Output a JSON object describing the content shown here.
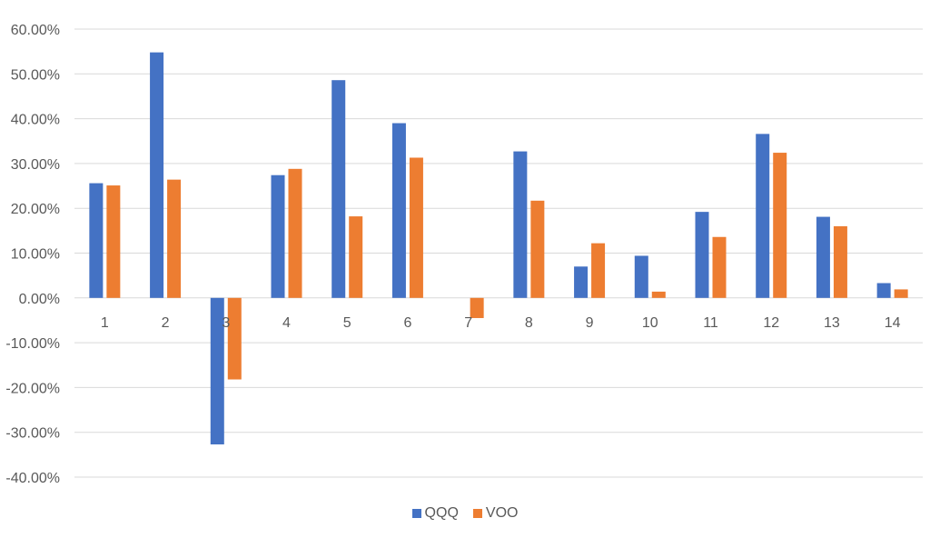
{
  "chart_data": {
    "type": "bar",
    "title": "",
    "xlabel": "",
    "ylabel": "",
    "categories": [
      "1",
      "2",
      "3",
      "4",
      "5",
      "6",
      "7",
      "8",
      "9",
      "10",
      "11",
      "12",
      "13",
      "14"
    ],
    "series": [
      {
        "name": "QQQ",
        "color": "#4472C4",
        "values": [
          25.6,
          54.8,
          -32.7,
          27.4,
          48.6,
          39.0,
          0.0,
          32.7,
          7.0,
          9.4,
          19.2,
          36.6,
          18.1,
          3.3
        ]
      },
      {
        "name": "VOO",
        "color": "#ED7D31",
        "values": [
          25.1,
          26.4,
          -18.2,
          28.8,
          18.2,
          31.3,
          -4.5,
          21.7,
          12.2,
          1.4,
          13.6,
          32.4,
          16.0,
          1.9
        ]
      }
    ],
    "ylim": [
      -40,
      60
    ],
    "yticks": [
      60,
      50,
      40,
      30,
      20,
      10,
      0,
      -10,
      -20,
      -30,
      -40
    ],
    "ytick_labels": [
      "60.00%",
      "50.00%",
      "40.00%",
      "30.00%",
      "20.00%",
      "10.00%",
      "0.00%",
      "-10.00%",
      "-20.00%",
      "-30.00%",
      "-40.00%"
    ],
    "grid": true,
    "legend_position": "bottom",
    "gridline_color": "#D9D9D9",
    "text_color": "#595959"
  }
}
